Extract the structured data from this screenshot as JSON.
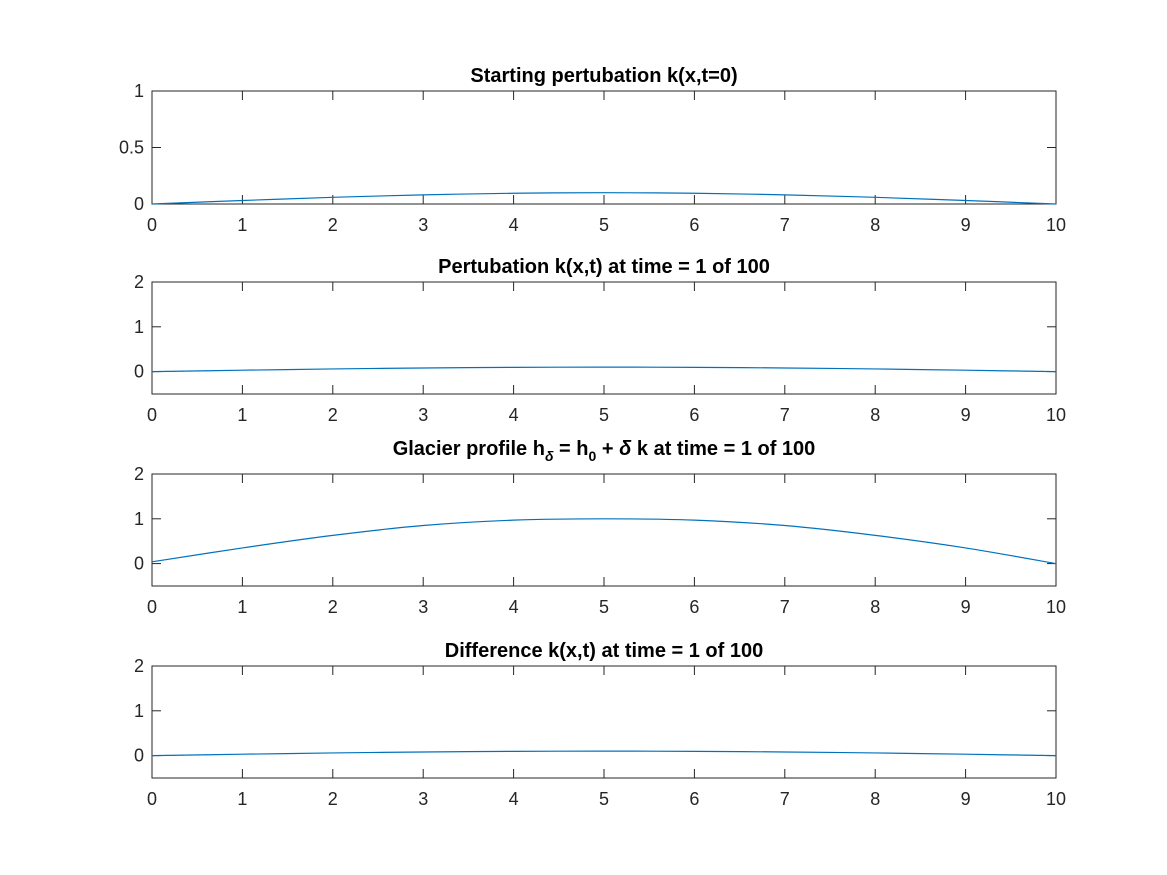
{
  "chart_data": [
    {
      "type": "line",
      "title": "Starting pertubation k(x,t=0)",
      "xlim": [
        0,
        10
      ],
      "ylim": [
        0,
        1
      ],
      "xticks": [
        0,
        1,
        2,
        3,
        4,
        5,
        6,
        7,
        8,
        9,
        10
      ],
      "yticks": [
        0,
        0.5,
        1
      ],
      "grid": false,
      "series": [
        {
          "color": "#0072bd",
          "x": [
            0,
            1,
            2,
            3,
            4,
            5,
            6,
            7,
            8,
            9,
            10
          ],
          "y": [
            0,
            0.031,
            0.059,
            0.081,
            0.095,
            0.1,
            0.095,
            0.081,
            0.059,
            0.031,
            0
          ]
        }
      ]
    },
    {
      "type": "line",
      "title": "Pertubation k(x,t) at time = 1 of 100",
      "xlim": [
        0,
        10
      ],
      "ylim": [
        -0.5,
        2
      ],
      "xticks": [
        0,
        1,
        2,
        3,
        4,
        5,
        6,
        7,
        8,
        9,
        10
      ],
      "yticks": [
        0,
        1,
        2
      ],
      "grid": false,
      "series": [
        {
          "color": "#0072bd",
          "x": [
            0,
            1,
            2,
            3,
            4,
            5,
            6,
            7,
            8,
            9,
            10
          ],
          "y": [
            0,
            0.031,
            0.059,
            0.081,
            0.095,
            0.1,
            0.095,
            0.081,
            0.059,
            0.031,
            0
          ]
        }
      ]
    },
    {
      "type": "line",
      "title_parts": {
        "prefix": "Glacier profile h",
        "sub1": "δ",
        "mid1": " = h",
        "sub2": "0",
        "mid2": " + ",
        "delta": "δ",
        "suffix": " k at time = 1 of 100"
      },
      "xlim": [
        0,
        10
      ],
      "ylim": [
        -0.5,
        2
      ],
      "xticks": [
        0,
        1,
        2,
        3,
        4,
        5,
        6,
        7,
        8,
        9,
        10
      ],
      "yticks": [
        0,
        1,
        2
      ],
      "grid": false,
      "series": [
        {
          "color": "#0072bd",
          "x": [
            0,
            1,
            2,
            3,
            4,
            5,
            6,
            7,
            8,
            9,
            10
          ],
          "y": [
            0.04,
            0.35,
            0.63,
            0.85,
            0.97,
            1.0,
            0.97,
            0.85,
            0.63,
            0.35,
            0.0
          ]
        }
      ]
    },
    {
      "type": "line",
      "title": "Difference k(x,t) at time = 1 of 100",
      "xlim": [
        0,
        10
      ],
      "ylim": [
        -0.5,
        2
      ],
      "xticks": [
        0,
        1,
        2,
        3,
        4,
        5,
        6,
        7,
        8,
        9,
        10
      ],
      "yticks": [
        0,
        1,
        2
      ],
      "grid": false,
      "series": [
        {
          "color": "#0072bd",
          "x": [
            0,
            1,
            2,
            3,
            4,
            5,
            6,
            7,
            8,
            9,
            10
          ],
          "y": [
            0,
            0.031,
            0.059,
            0.081,
            0.095,
            0.1,
            0.095,
            0.081,
            0.059,
            0.031,
            0
          ]
        }
      ]
    }
  ]
}
